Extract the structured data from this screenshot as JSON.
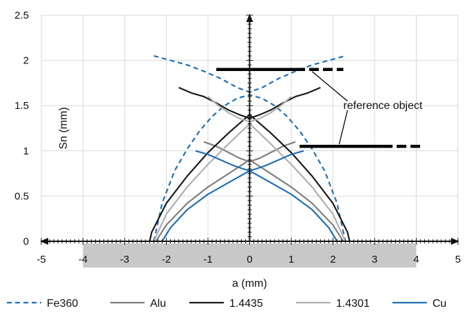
{
  "chart_data": {
    "type": "line",
    "xlabel": "a (mm)",
    "ylabel": "Sn (mm)",
    "xlim": [
      -5,
      5
    ],
    "ylim": [
      0,
      2.5
    ],
    "x_ticks": [
      "-5",
      "-4",
      "-3",
      "-2",
      "-1",
      "0",
      "1",
      "2",
      "3",
      "4",
      "5"
    ],
    "y_ticks": [
      "0",
      "0.5",
      "1",
      "1.5",
      "2",
      "2.5"
    ],
    "grid": true,
    "legend_position": "bottom",
    "shaded_region": {
      "x": [
        -4,
        4
      ],
      "color": "#c8c8c8"
    },
    "annotation": "reference object",
    "reference_objects": [
      {
        "y": 1.9,
        "solid": [
          -0.8,
          1.1
        ],
        "dashed": [
          1.1,
          2.25
        ]
      },
      {
        "y": 1.05,
        "solid": [
          1.2,
          3.2
        ],
        "dashed": [
          3.2,
          4.1
        ]
      }
    ],
    "series": [
      {
        "name": "Fe360",
        "color": "#1f6fb5",
        "dash": "dashed",
        "x": [
          -2.3,
          -2.1,
          -1.8,
          -1.5,
          -1.2,
          -0.9,
          -0.6,
          -0.3,
          0,
          0.3,
          0.6,
          0.9,
          1.2,
          1.5,
          1.8,
          2.1,
          2.3
        ],
        "y": [
          0,
          0.42,
          0.78,
          1.02,
          1.22,
          1.38,
          1.5,
          1.58,
          1.62,
          1.58,
          1.5,
          1.38,
          1.22,
          1.02,
          0.78,
          0.42,
          0
        ]
      },
      {
        "name": "Fe360",
        "color": "#1f6fb5",
        "dash": "dashed",
        "x": [
          -2.3,
          -1.9,
          -1.5,
          -1.1,
          -0.7,
          -0.3,
          0,
          0.3,
          0.7,
          1.1,
          1.5,
          1.9,
          2.3
        ],
        "y": [
          2.05,
          2.0,
          1.95,
          1.88,
          1.8,
          1.7,
          1.65,
          1.7,
          1.8,
          1.88,
          1.95,
          2.0,
          2.05
        ]
      },
      {
        "name": "Alu",
        "color": "#7f7f7f",
        "dash": "solid",
        "x": [
          -2.25,
          -2.0,
          -1.5,
          -1.0,
          -0.5,
          0,
          0.5,
          1.0,
          1.5,
          2.0,
          2.25
        ],
        "y": [
          0,
          0.18,
          0.42,
          0.6,
          0.75,
          0.9,
          0.75,
          0.6,
          0.42,
          0.18,
          0
        ]
      },
      {
        "name": "Alu",
        "color": "#7f7f7f",
        "dash": "solid",
        "x": [
          -1.1,
          -0.8,
          -0.5,
          -0.25,
          0,
          0.25,
          0.5,
          0.8,
          1.1
        ],
        "y": [
          1.1,
          1.05,
          0.98,
          0.92,
          0.88,
          0.92,
          0.98,
          1.05,
          1.1
        ]
      },
      {
        "name": "1.4435",
        "color": "#1a1a1a",
        "dash": "solid",
        "x": [
          -2.4,
          -2.35,
          -2.0,
          -1.5,
          -1.0,
          -0.5,
          0,
          0.5,
          1.0,
          1.5,
          2.0,
          2.35,
          2.4
        ],
        "y": [
          0,
          0.1,
          0.42,
          0.72,
          0.98,
          1.2,
          1.4,
          1.2,
          0.98,
          0.72,
          0.42,
          0.1,
          0
        ]
      },
      {
        "name": "1.4435",
        "color": "#1a1a1a",
        "dash": "solid",
        "x": [
          -1.7,
          -1.4,
          -1.1,
          -0.8,
          -0.5,
          -0.25,
          0,
          0.25,
          0.5,
          0.8,
          1.1,
          1.4,
          1.7
        ],
        "y": [
          1.7,
          1.64,
          1.6,
          1.53,
          1.45,
          1.4,
          1.36,
          1.4,
          1.45,
          1.53,
          1.6,
          1.64,
          1.7
        ]
      },
      {
        "name": "1.4301",
        "color": "#b0b0b0",
        "dash": "solid",
        "x": [
          -2.3,
          -2.0,
          -1.5,
          -1.0,
          -0.5,
          0,
          0.5,
          1.0,
          1.5,
          2.0,
          2.3
        ],
        "y": [
          0,
          0.3,
          0.6,
          0.85,
          1.08,
          1.3,
          1.08,
          0.85,
          0.6,
          0.3,
          0
        ]
      },
      {
        "name": "1.4301",
        "color": "#b0b0b0",
        "dash": "solid",
        "x": [
          -1.0,
          -0.75,
          -0.5,
          -0.25,
          0,
          0.25,
          0.5,
          0.75,
          1.0
        ],
        "y": [
          1.6,
          1.5,
          1.42,
          1.36,
          1.32,
          1.36,
          1.42,
          1.5,
          1.6
        ]
      },
      {
        "name": "Cu",
        "color": "#1f6fb5",
        "dash": "solid",
        "x": [
          -2.1,
          -1.9,
          -1.5,
          -1.0,
          -0.5,
          0,
          0.5,
          1.0,
          1.5,
          1.9,
          2.1
        ],
        "y": [
          0,
          0.15,
          0.35,
          0.52,
          0.65,
          0.78,
          0.65,
          0.52,
          0.35,
          0.15,
          0
        ]
      },
      {
        "name": "Cu",
        "color": "#1f6fb5",
        "dash": "solid",
        "x": [
          -1.3,
          -1.0,
          -0.7,
          -0.4,
          -0.15,
          0,
          0.15,
          0.4,
          0.7,
          1.0,
          1.3
        ],
        "y": [
          1.0,
          0.96,
          0.9,
          0.84,
          0.8,
          0.78,
          0.8,
          0.84,
          0.9,
          0.96,
          1.0
        ]
      }
    ],
    "legend": [
      {
        "label": "Fe360",
        "color": "#1f6fb5",
        "dash": "dashed"
      },
      {
        "label": "Alu",
        "color": "#7f7f7f",
        "dash": "solid"
      },
      {
        "label": "1.4435",
        "color": "#1a1a1a",
        "dash": "solid"
      },
      {
        "label": "1.4301",
        "color": "#b0b0b0",
        "dash": "solid"
      },
      {
        "label": "Cu",
        "color": "#1f6fb5",
        "dash": "solid"
      }
    ]
  }
}
